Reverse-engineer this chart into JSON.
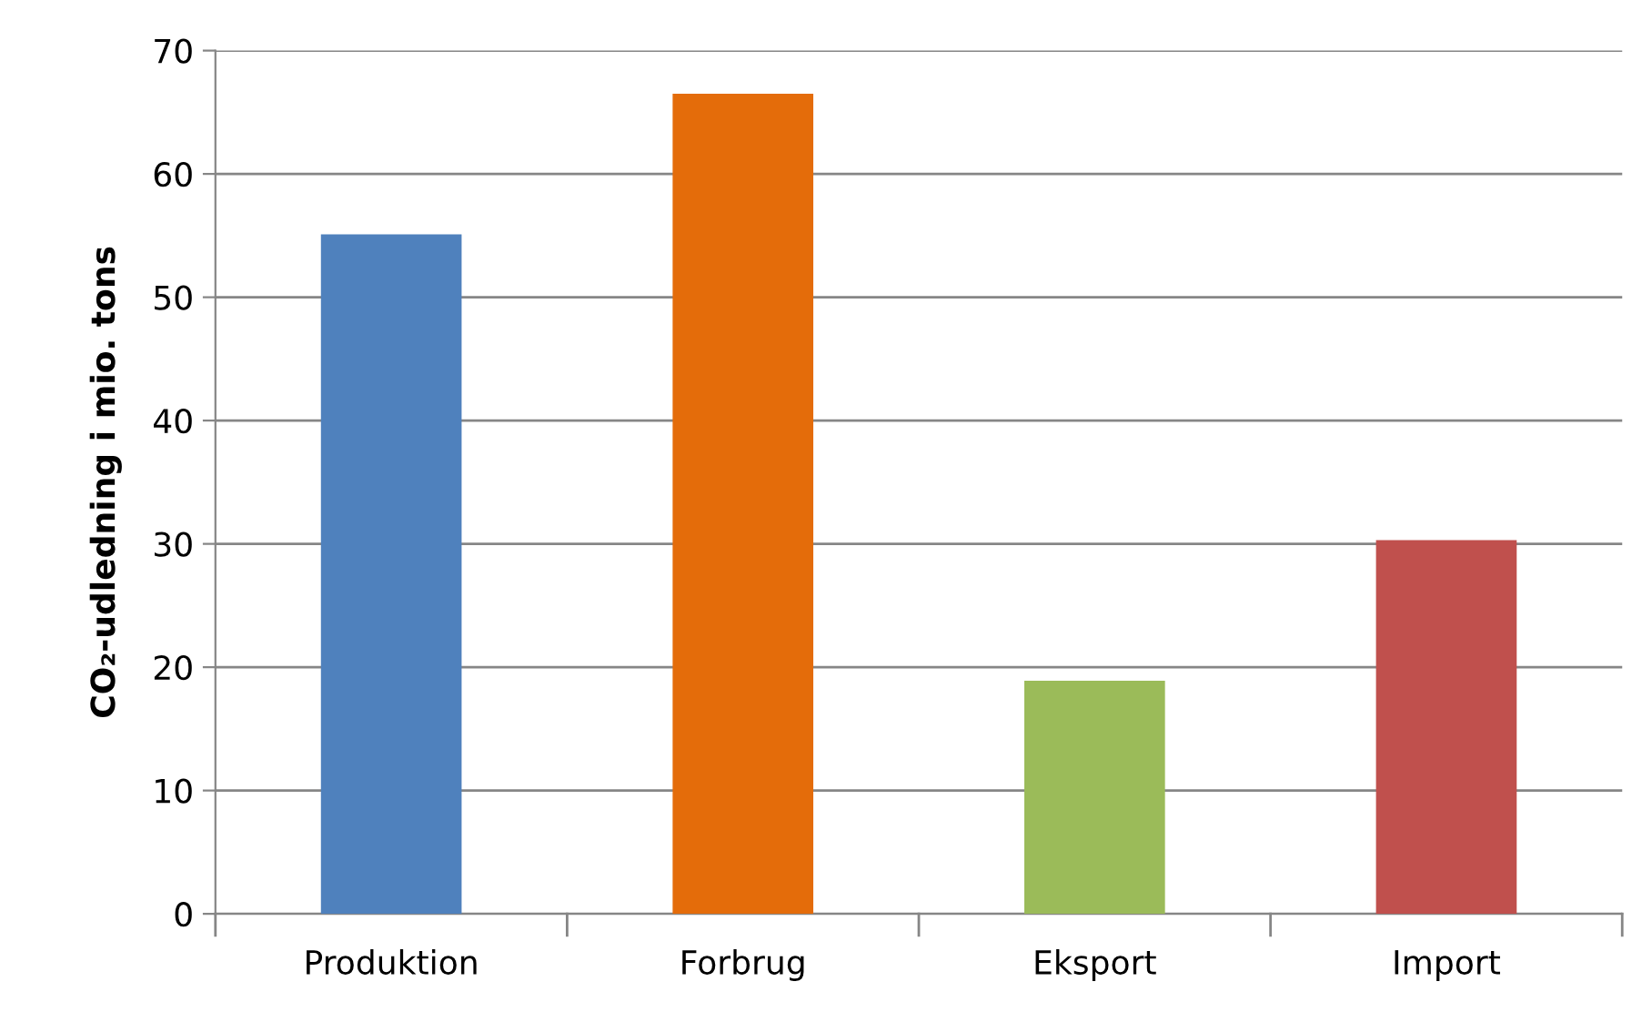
{
  "chart_data": {
    "type": "bar",
    "ylabel": "CO₂-udledning i mio. tons",
    "categories": [
      "Produktion",
      "Forbrug",
      "Eksport",
      "Import"
    ],
    "values": [
      55.1,
      66.5,
      18.9,
      30.3
    ],
    "colors": [
      "#4f81bd",
      "#e46c0a",
      "#9bbb59",
      "#c0504d"
    ],
    "ylim": [
      0,
      70
    ],
    "yticks": [
      0,
      10,
      20,
      30,
      40,
      50,
      60,
      70
    ],
    "grid": "y"
  }
}
